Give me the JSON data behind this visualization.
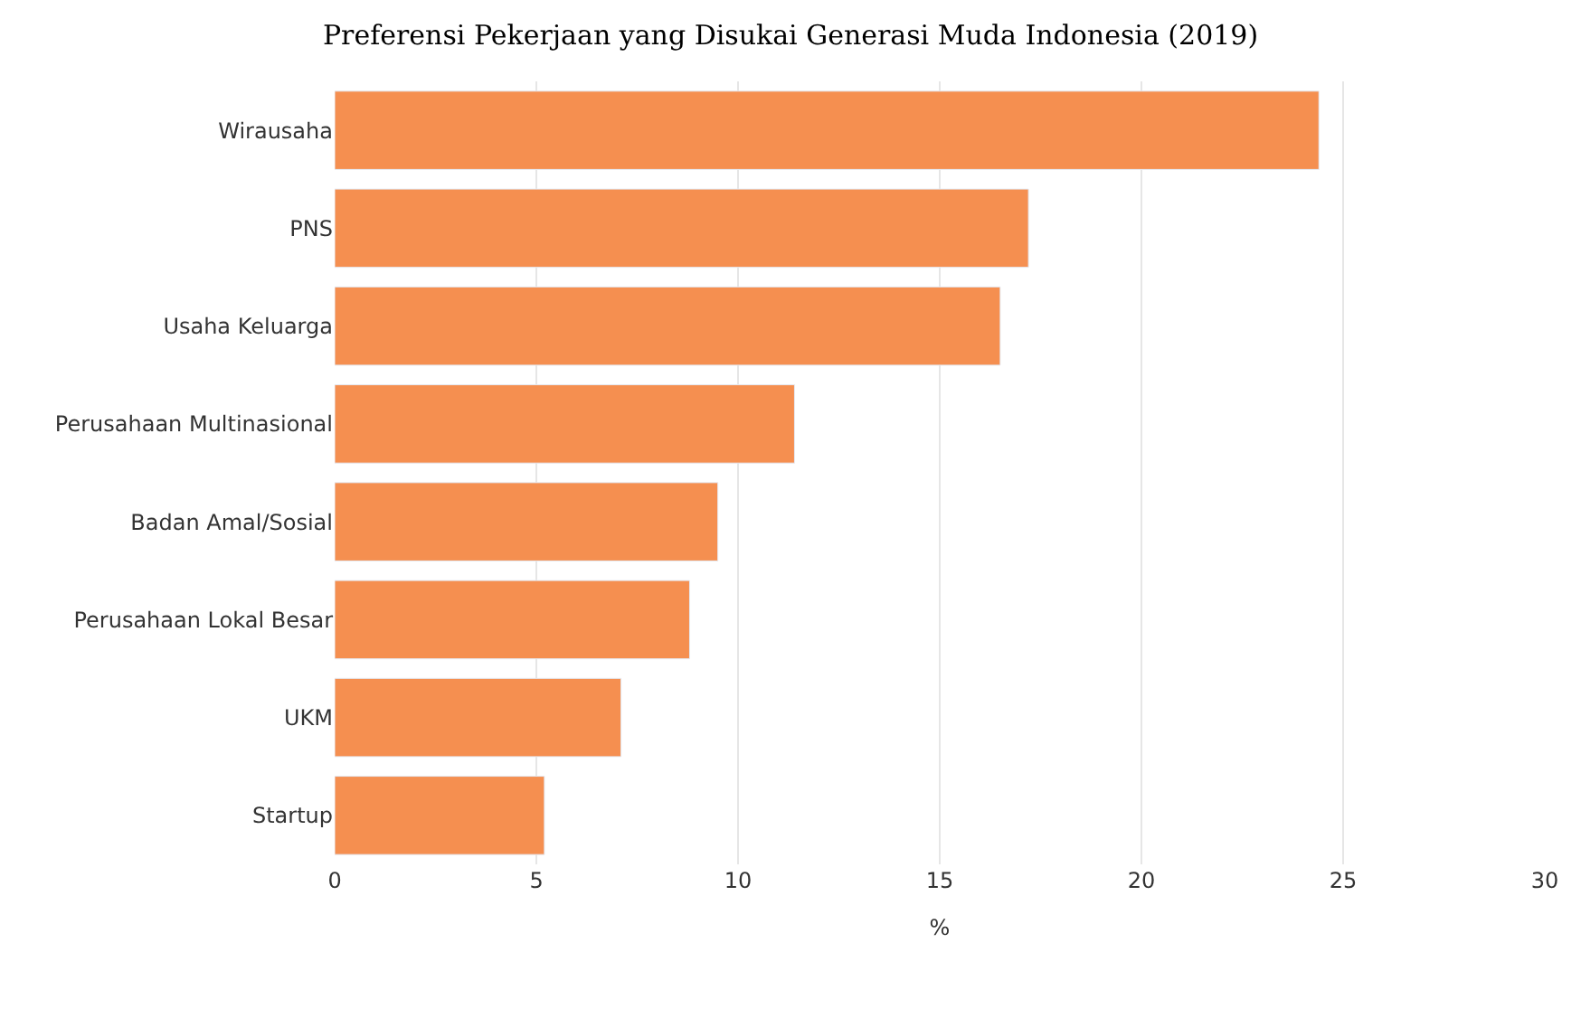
{
  "chart_data": {
    "type": "bar",
    "orientation": "horizontal",
    "title": "Preferensi Pekerjaan yang Disukai Generasi Muda Indonesia (2019)",
    "categories": [
      "Wirausaha",
      "PNS",
      "Usaha Keluarga",
      "Perusahaan Multinasional",
      "Badan Amal/Sosial",
      "Perusahaan Lokal Besar",
      "UKM",
      "Startup"
    ],
    "values": [
      24.4,
      17.2,
      16.5,
      11.4,
      9.5,
      8.8,
      7.1,
      5.2
    ],
    "color": "#f58f50",
    "xlabel": "%",
    "xlim": [
      0,
      30
    ],
    "xticks": [
      0,
      5,
      10,
      15,
      20,
      25,
      30
    ],
    "grid": "x"
  }
}
